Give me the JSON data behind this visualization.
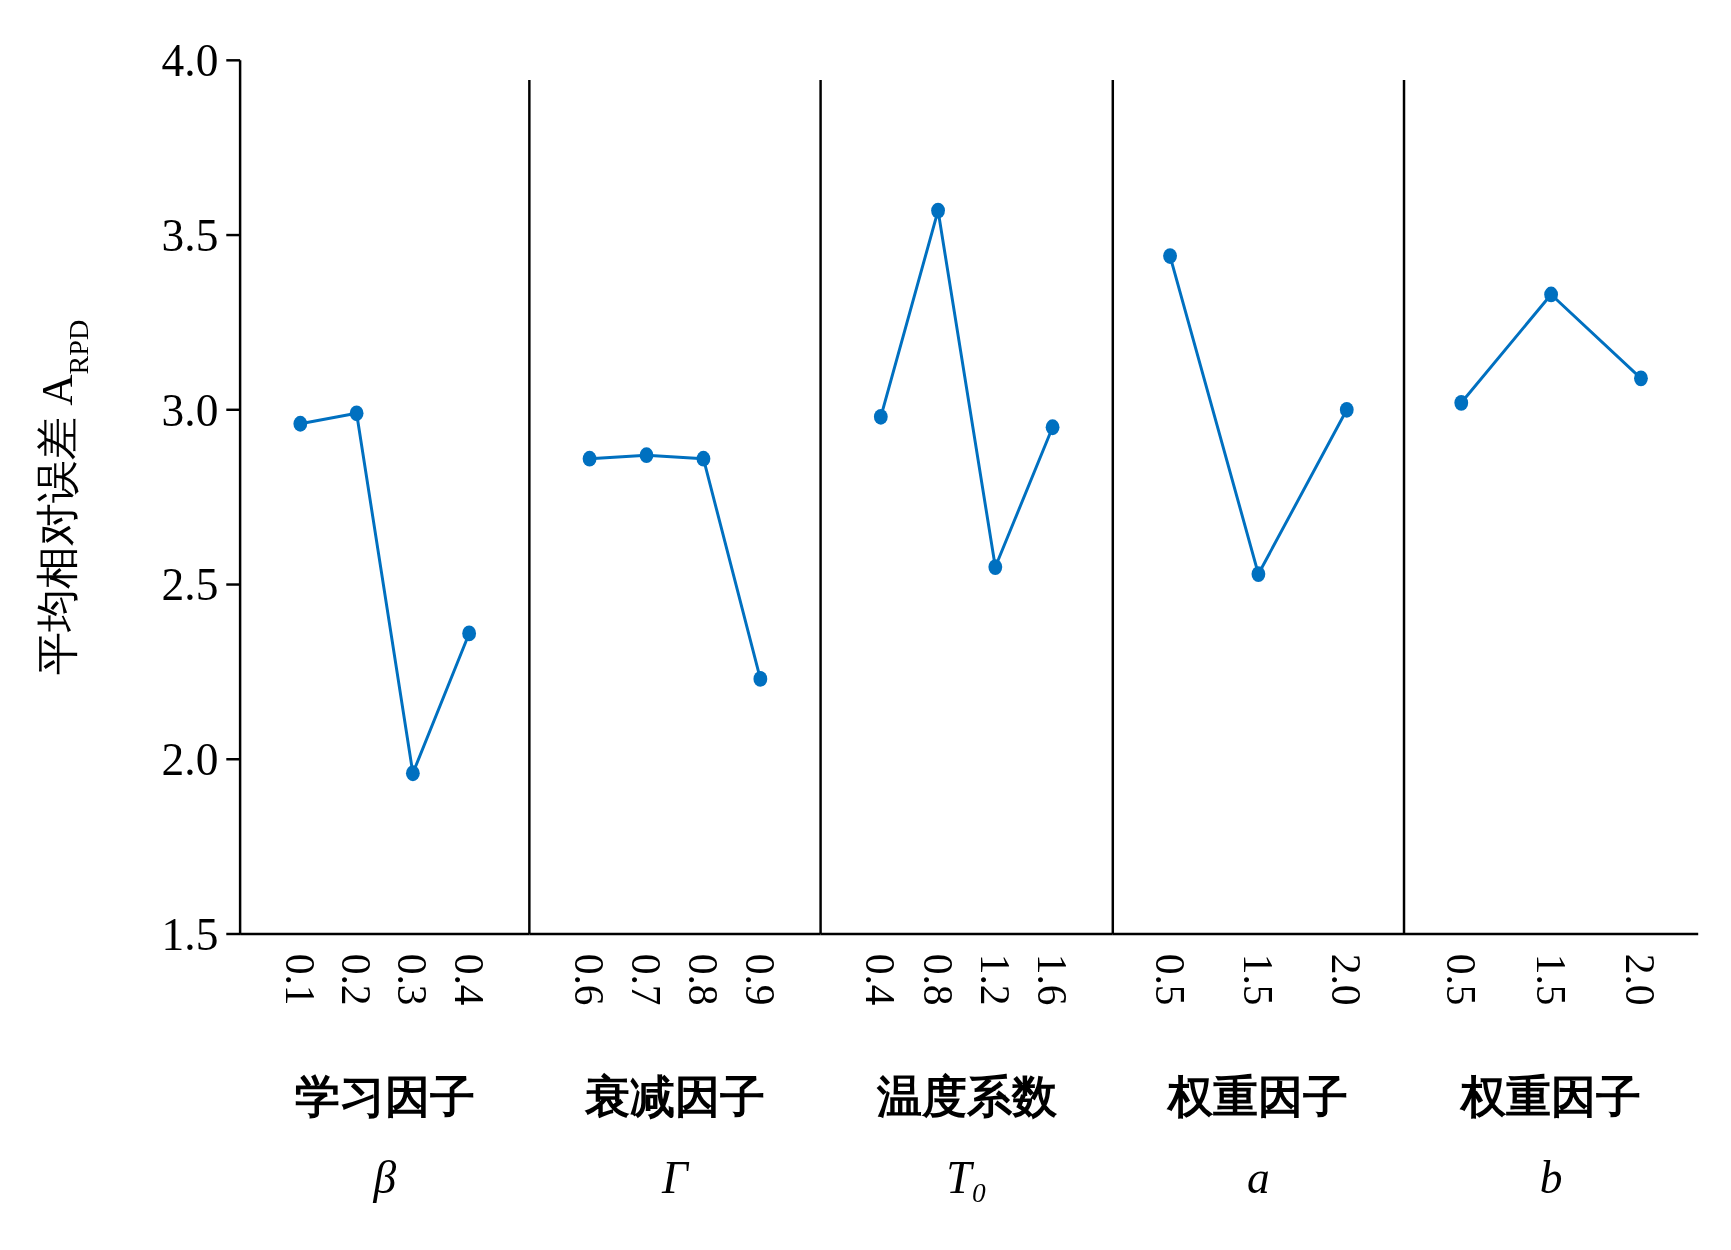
{
  "chart_data": [
    {
      "type": "line",
      "ylabel": "平均相对误差 A$_{RPD}$",
      "xlabel": "学习因子\nβ",
      "categories": [
        "0.1",
        "0.2",
        "0.3",
        "0.4"
      ],
      "values": [
        2.96,
        2.99,
        1.96,
        2.36
      ],
      "color": "#0070c0",
      "marker": "circle",
      "ylim": [
        1.5,
        4.0
      ],
      "yticks": [
        {
          "value": 1.5,
          "label": "1.5"
        },
        {
          "value": 2,
          "label": "2.0"
        },
        {
          "value": 2.5,
          "label": "2.5"
        },
        {
          "value": 3,
          "label": "3.0"
        },
        {
          "value": 3.5,
          "label": "3.5"
        },
        {
          "value": 4,
          "label": "4.0"
        }
      ]
    },
    {
      "type": "line",
      "xlabel": "衰减因子\nΓ",
      "categories": [
        "0.6",
        "0.7",
        "0.8",
        "0.9"
      ],
      "values": [
        2.86,
        2.87,
        2.86,
        2.23
      ],
      "color": "#0070c0",
      "marker": "circle",
      "ylim": [
        1.5,
        4.0
      ],
      "tick_labels": "x"
    },
    {
      "type": "line",
      "xlabel": "温度系数\nT₀",
      "categories": [
        "0.4",
        "0.8",
        "1.2",
        "1.6"
      ],
      "values": [
        2.98,
        3.57,
        2.55,
        2.95
      ],
      "color": "#0070c0",
      "marker": "circle",
      "ylim": [
        1.5,
        4.0
      ],
      "tick_labels": "x"
    },
    {
      "type": "line",
      "xlabel": "权重因子\na",
      "categories": [
        "0.5",
        "1.5",
        "2.0"
      ],
      "values": [
        3.44,
        2.53,
        3.0
      ],
      "color": "#0070c0",
      "marker": "circle",
      "ylim": [
        1.5,
        4.0
      ],
      "tick_labels": "x"
    },
    {
      "type": "line",
      "xlabel": "权重因子\nb",
      "categories": [
        "0.5",
        "1.5",
        "2.0"
      ],
      "values": [
        3.02,
        3.33,
        3.09
      ],
      "color": "#0070c0",
      "marker": "circle",
      "ylim": [
        1.5,
        4.0
      ],
      "tick_labels": "x"
    }
  ]
}
